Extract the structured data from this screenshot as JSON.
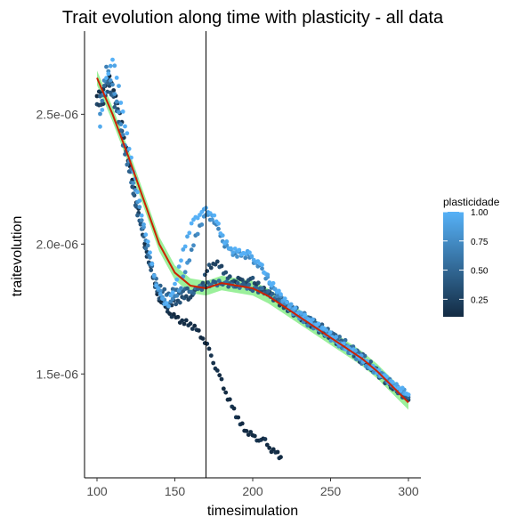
{
  "chart_data": {
    "type": "scatter",
    "title": "Trait evolution along time with plasticity - all data",
    "xlabel": "timesimulation",
    "ylabel": "traitevolution",
    "xlim": [
      92,
      308
    ],
    "ylim": [
      1.1e-06,
      2.82e-06
    ],
    "x_ticks": [
      100,
      150,
      200,
      250,
      300
    ],
    "x_tick_labels": [
      "100",
      "150",
      "200",
      "250",
      "300"
    ],
    "y_ticks": [
      1.5e-06,
      2e-06,
      2.5e-06
    ],
    "y_tick_labels": [
      "1.5e-06",
      "2.0e-06",
      "2.5e-06"
    ],
    "vline_x": 170,
    "grid": false,
    "legend": {
      "title": "plasticidade",
      "position": "right",
      "labels": [
        "1.00",
        "0.75",
        "0.50",
        "0.25"
      ],
      "values": [
        1.0,
        0.75,
        0.5,
        0.25
      ],
      "range": [
        0.1,
        1.0
      ]
    },
    "color_low": "#132B43",
    "color_high": "#56B1F7",
    "smooth_color": "#cc2200",
    "ribbon_color": "#90ee90",
    "series": [
      {
        "plasticity": 0.1,
        "points": [
          [
            100,
            2.57e-06
          ],
          [
            104,
            2.6e-06
          ],
          [
            108,
            2.64e-06
          ],
          [
            112,
            2.58e-06
          ],
          [
            116,
            2.46e-06
          ],
          [
            120,
            2.33e-06
          ],
          [
            124,
            2.21e-06
          ],
          [
            128,
            2.09e-06
          ],
          [
            132,
            1.97e-06
          ],
          [
            136,
            1.87e-06
          ],
          [
            140,
            1.79e-06
          ],
          [
            144,
            1.75e-06
          ],
          [
            148,
            1.73e-06
          ],
          [
            152,
            1.71e-06
          ],
          [
            156,
            1.7e-06
          ],
          [
            160,
            1.69e-06
          ],
          [
            164,
            1.67e-06
          ],
          [
            168,
            1.64e-06
          ],
          [
            172,
            1.59e-06
          ],
          [
            176,
            1.53e-06
          ],
          [
            180,
            1.47e-06
          ],
          [
            184,
            1.41e-06
          ],
          [
            188,
            1.36e-06
          ],
          [
            192,
            1.31e-06
          ],
          [
            196,
            1.28e-06
          ],
          [
            200,
            1.26e-06
          ],
          [
            204,
            1.25e-06
          ],
          [
            208,
            1.24e-06
          ],
          [
            212,
            1.21e-06
          ],
          [
            216,
            1.19e-06
          ],
          [
            218,
            1.18e-06
          ]
        ]
      },
      {
        "plasticity": 0.3,
        "points": [
          [
            100,
            2.53e-06
          ],
          [
            104,
            2.55e-06
          ],
          [
            108,
            2.6e-06
          ],
          [
            112,
            2.55e-06
          ],
          [
            116,
            2.43e-06
          ],
          [
            120,
            2.31e-06
          ],
          [
            124,
            2.19e-06
          ],
          [
            128,
            2.07e-06
          ],
          [
            132,
            1.96e-06
          ],
          [
            136,
            1.86e-06
          ],
          [
            140,
            1.8e-06
          ],
          [
            144,
            1.76e-06
          ],
          [
            148,
            1.77e-06
          ],
          [
            152,
            1.78e-06
          ],
          [
            156,
            1.79e-06
          ],
          [
            160,
            1.8e-06
          ],
          [
            164,
            1.82e-06
          ],
          [
            168,
            1.86e-06
          ],
          [
            172,
            1.91e-06
          ],
          [
            176,
            1.93e-06
          ],
          [
            180,
            1.91e-06
          ],
          [
            184,
            1.87e-06
          ],
          [
            188,
            1.86e-06
          ],
          [
            192,
            1.86e-06
          ],
          [
            196,
            1.86e-06
          ],
          [
            200,
            1.86e-06
          ],
          [
            206,
            1.83e-06
          ],
          [
            212,
            1.8e-06
          ],
          [
            220,
            1.76e-06
          ],
          [
            230,
            1.72e-06
          ],
          [
            240,
            1.68e-06
          ],
          [
            250,
            1.64e-06
          ],
          [
            260,
            1.6e-06
          ],
          [
            270,
            1.55e-06
          ],
          [
            280,
            1.5e-06
          ],
          [
            290,
            1.45e-06
          ],
          [
            300,
            1.4e-06
          ]
        ]
      },
      {
        "plasticity": 0.5,
        "points": [
          [
            102,
            2.56e-06
          ],
          [
            106,
            2.63e-06
          ],
          [
            110,
            2.57e-06
          ],
          [
            114,
            2.47e-06
          ],
          [
            118,
            2.35e-06
          ],
          [
            122,
            2.23e-06
          ],
          [
            126,
            2.12e-06
          ],
          [
            130,
            2.02e-06
          ],
          [
            134,
            1.93e-06
          ],
          [
            138,
            1.86e-06
          ],
          [
            142,
            1.82e-06
          ],
          [
            146,
            1.81e-06
          ],
          [
            150,
            1.82e-06
          ],
          [
            154,
            1.82e-06
          ],
          [
            158,
            1.82e-06
          ],
          [
            162,
            1.82e-06
          ],
          [
            166,
            1.83e-06
          ],
          [
            170,
            1.84e-06
          ],
          [
            176,
            1.85e-06
          ],
          [
            182,
            1.85e-06
          ],
          [
            188,
            1.84e-06
          ],
          [
            194,
            1.84e-06
          ],
          [
            200,
            1.83e-06
          ],
          [
            206,
            1.82e-06
          ],
          [
            214,
            1.8e-06
          ],
          [
            222,
            1.77e-06
          ],
          [
            232,
            1.73e-06
          ],
          [
            242,
            1.69e-06
          ],
          [
            252,
            1.65e-06
          ],
          [
            262,
            1.61e-06
          ],
          [
            272,
            1.56e-06
          ],
          [
            282,
            1.5e-06
          ],
          [
            292,
            1.44e-06
          ],
          [
            300,
            1.41e-06
          ]
        ]
      },
      {
        "plasticity": 0.75,
        "points": [
          [
            102,
            2.5e-06
          ],
          [
            106,
            2.68e-06
          ],
          [
            110,
            2.62e-06
          ],
          [
            114,
            2.5e-06
          ],
          [
            118,
            2.39e-06
          ],
          [
            122,
            2.28e-06
          ],
          [
            126,
            2.17e-06
          ],
          [
            130,
            2.06e-06
          ],
          [
            134,
            1.95e-06
          ],
          [
            138,
            1.85e-06
          ],
          [
            142,
            1.79e-06
          ],
          [
            146,
            1.77e-06
          ],
          [
            150,
            1.79e-06
          ],
          [
            154,
            1.84e-06
          ],
          [
            158,
            1.92e-06
          ],
          [
            162,
            2e-06
          ],
          [
            166,
            2.07e-06
          ],
          [
            170,
            2.11e-06
          ],
          [
            174,
            2.1e-06
          ],
          [
            178,
            2.05e-06
          ],
          [
            182,
            2e-06
          ],
          [
            186,
            1.97e-06
          ],
          [
            190,
            1.96e-06
          ],
          [
            194,
            1.96e-06
          ],
          [
            198,
            1.95e-06
          ],
          [
            202,
            1.93e-06
          ],
          [
            206,
            1.9e-06
          ],
          [
            212,
            1.84e-06
          ],
          [
            218,
            1.79e-06
          ],
          [
            226,
            1.74e-06
          ],
          [
            234,
            1.7e-06
          ],
          [
            244,
            1.67e-06
          ],
          [
            254,
            1.62e-06
          ],
          [
            264,
            1.58e-06
          ],
          [
            274,
            1.53e-06
          ],
          [
            284,
            1.49e-06
          ],
          [
            292,
            1.45e-06
          ],
          [
            300,
            1.42e-06
          ]
        ]
      },
      {
        "plasticity": 1.0,
        "points": [
          [
            102,
            2.46e-06
          ],
          [
            106,
            2.63e-06
          ],
          [
            110,
            2.72e-06
          ],
          [
            114,
            2.6e-06
          ],
          [
            118,
            2.46e-06
          ],
          [
            122,
            2.33e-06
          ],
          [
            126,
            2.2e-06
          ],
          [
            130,
            2.08e-06
          ],
          [
            134,
            1.96e-06
          ],
          [
            138,
            1.85e-06
          ],
          [
            142,
            1.78e-06
          ],
          [
            146,
            1.77e-06
          ],
          [
            150,
            1.84e-06
          ],
          [
            154,
            1.94e-06
          ],
          [
            158,
            2.03e-06
          ],
          [
            162,
            2.09e-06
          ],
          [
            166,
            2.12e-06
          ],
          [
            170,
            2.13e-06
          ],
          [
            174,
            2.12e-06
          ],
          [
            178,
            2.07e-06
          ],
          [
            182,
            2.01e-06
          ],
          [
            186,
            1.98e-06
          ],
          [
            190,
            1.97e-06
          ],
          [
            194,
            1.97e-06
          ],
          [
            198,
            1.96e-06
          ],
          [
            202,
            1.94e-06
          ],
          [
            206,
            1.91e-06
          ],
          [
            212,
            1.85e-06
          ],
          [
            218,
            1.8e-06
          ],
          [
            226,
            1.75e-06
          ],
          [
            236,
            1.71e-06
          ],
          [
            246,
            1.67e-06
          ],
          [
            256,
            1.62e-06
          ],
          [
            266,
            1.58e-06
          ],
          [
            276,
            1.53e-06
          ],
          [
            286,
            1.48e-06
          ],
          [
            300,
            1.42e-06
          ]
        ]
      }
    ],
    "smooth": [
      [
        100,
        2.64e-06
      ],
      [
        110,
        2.5e-06
      ],
      [
        120,
        2.34e-06
      ],
      [
        130,
        2.17e-06
      ],
      [
        140,
        2e-06
      ],
      [
        150,
        1.89e-06
      ],
      [
        160,
        1.84e-06
      ],
      [
        170,
        1.83e-06
      ],
      [
        180,
        1.85e-06
      ],
      [
        190,
        1.84e-06
      ],
      [
        200,
        1.83e-06
      ],
      [
        210,
        1.8e-06
      ],
      [
        220,
        1.76e-06
      ],
      [
        230,
        1.72e-06
      ],
      [
        240,
        1.68e-06
      ],
      [
        250,
        1.64e-06
      ],
      [
        260,
        1.6e-06
      ],
      [
        270,
        1.56e-06
      ],
      [
        280,
        1.51e-06
      ],
      [
        290,
        1.45e-06
      ],
      [
        300,
        1.39e-06
      ]
    ]
  }
}
